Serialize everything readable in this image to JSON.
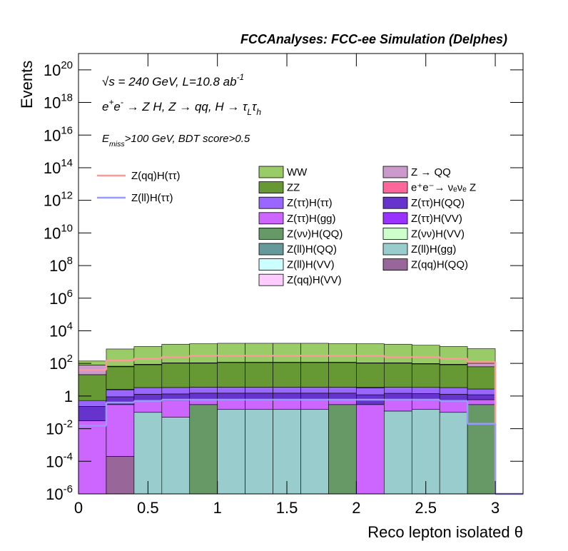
{
  "chart_data": {
    "type": "histogram",
    "stacked": true,
    "log_y": true,
    "title": "FCCAnalyses: FCC-ee Simulation (Delphes)",
    "x_label": "Reco lepton isolated θ",
    "y_label": "Events",
    "annotations": [
      [
        {
          "text": "√s = 240 GeV, L=10.8 ab"
        },
        {
          "text": "-1",
          "sup": true
        }
      ],
      [
        {
          "text": "e"
        },
        {
          "text": "+",
          "sup": true
        },
        {
          "text": "e"
        },
        {
          "text": "-",
          "sup": true
        },
        {
          "text": " → Z H, Z  → qq, H  → τ"
        },
        {
          "text": "L",
          "sub": true
        },
        {
          "text": "τ"
        },
        {
          "text": "h",
          "sub": true
        }
      ],
      [
        {
          "text": "E"
        },
        {
          "text": "miss",
          "sub": true
        },
        {
          "text": ">100 GeV, BDT score>0.5"
        }
      ]
    ],
    "bins": [
      0,
      0.2,
      0.4,
      0.6,
      0.8,
      1.0,
      1.2,
      1.4,
      1.6,
      1.8,
      2.0,
      2.2,
      2.4,
      2.6,
      2.8,
      3.0,
      3.2
    ],
    "xlim": [
      0,
      3.2
    ],
    "xticks": [
      0,
      0.5,
      1,
      1.5,
      2,
      2.5,
      3
    ],
    "ylim": [
      1e-06,
      1e+21
    ],
    "yticks": [
      {
        "value": 1e-06,
        "label": "10",
        "exponent": "-6"
      },
      {
        "value": 0.0001,
        "label": "10",
        "exponent": "-4"
      },
      {
        "value": 0.01,
        "label": "10",
        "exponent": "-2"
      },
      1,
      {
        "value": 100.0,
        "label": "10",
        "exponent": "2"
      },
      {
        "value": 10000.0,
        "label": "10",
        "exponent": "4"
      },
      {
        "value": 1000000.0,
        "label": "10",
        "exponent": "6"
      },
      {
        "value": 100000000.0,
        "label": "10",
        "exponent": "8"
      },
      {
        "value": 10000000000.0,
        "label": "10",
        "exponent": "10"
      },
      {
        "value": 1000000000000.0,
        "label": "10",
        "exponent": "12"
      },
      {
        "value": 100000000000000.0,
        "label": "10",
        "exponent": "14"
      },
      {
        "value": 1e+16,
        "label": "10",
        "exponent": "16"
      },
      {
        "value": 1e+18,
        "label": "10",
        "exponent": "18"
      },
      {
        "value": 1e+20,
        "label": "10",
        "exponent": "20"
      }
    ],
    "series": [
      {
        "name": "WW",
        "color": "#99cc66",
        "values": [
          60,
          700,
          1000,
          1400,
          1500,
          1600,
          1600,
          1600,
          1600,
          1500,
          1500,
          1400,
          1200,
          1000,
          700,
          0
        ]
      },
      {
        "name": "Z → QQ",
        "color": "#cc99cc",
        "values": [
          60,
          5,
          5,
          5,
          5,
          5,
          5,
          5,
          5,
          5,
          5,
          5,
          5,
          5,
          40,
          0
        ]
      },
      {
        "name": "ZZ",
        "color": "#669933",
        "values": [
          20,
          60,
          80,
          100,
          100,
          110,
          110,
          110,
          110,
          110,
          100,
          100,
          90,
          80,
          60,
          0
        ]
      },
      {
        "name": "e⁺e⁻→ νₑνₑ Z",
        "color": "#ff6699",
        "values": [
          0,
          0.2,
          0,
          0,
          0,
          0,
          0,
          0,
          0,
          0,
          0.2,
          0,
          0,
          0,
          0,
          0
        ]
      },
      {
        "name": "Z(ττ)H(ττ)",
        "color": "#9966ff",
        "values": [
          0.3,
          1.5,
          2,
          2,
          2,
          2,
          2,
          2,
          2,
          2,
          2,
          2,
          2,
          2,
          1.5,
          0
        ]
      },
      {
        "name": "Z(ττ)H(QQ)",
        "color": "#6633cc",
        "values": [
          0.2,
          0.6,
          0.8,
          0.8,
          0.9,
          0.9,
          0.9,
          0.9,
          0.9,
          0.9,
          0.9,
          0.9,
          0.8,
          0.8,
          0.6,
          0
        ]
      },
      {
        "name": "Z(ττ)H(gg)",
        "color": "#cc66ff",
        "values": [
          0.03,
          0.3,
          0.4,
          0.5,
          0.3,
          0.45,
          0.45,
          0.45,
          0.45,
          0.3,
          0.3,
          0.45,
          0.45,
          0.4,
          0.3,
          0
        ]
      },
      {
        "name": "Z(ττ)H(VV)",
        "color": "#9933ff",
        "values": [
          0,
          0,
          0,
          0,
          0,
          0,
          0,
          0,
          0,
          0,
          0,
          0,
          0,
          0,
          0,
          0
        ]
      },
      {
        "name": "Z(νν)H(QQ)",
        "color": "#669966",
        "values": [
          0,
          0,
          0,
          0,
          0.3,
          0,
          0,
          0,
          0,
          0.3,
          0,
          0,
          0,
          0,
          0.3,
          0
        ]
      },
      {
        "name": "Z(νν)H(VV)",
        "color": "#ccffcc",
        "values": [
          0,
          0,
          0,
          0,
          0,
          0,
          0,
          0,
          0,
          0,
          0,
          0,
          0,
          0,
          0,
          0
        ]
      },
      {
        "name": "Z(ll)H(QQ)",
        "color": "#669999",
        "values": [
          0,
          0,
          0,
          0,
          0,
          0,
          0,
          0,
          0,
          0,
          0,
          0,
          0,
          0,
          0,
          0
        ]
      },
      {
        "name": "Z(ll)H(gg)",
        "color": "#99cccc",
        "values": [
          0,
          0,
          0.1,
          0.05,
          0,
          0.15,
          0.15,
          0.15,
          0.15,
          0,
          0,
          0.12,
          0.15,
          0.1,
          0,
          0
        ]
      },
      {
        "name": "Z(ll)H(VV)",
        "color": "#ccffff",
        "values": [
          0,
          0,
          0,
          0,
          0,
          0,
          0,
          0,
          0,
          0,
          0,
          0,
          0,
          0,
          0,
          0
        ]
      },
      {
        "name": "Z(qq)H(QQ)",
        "color": "#996699",
        "values": [
          0,
          0.0002,
          0,
          0,
          0,
          0,
          0,
          0,
          0,
          0,
          0,
          0,
          0,
          0,
          0,
          0
        ]
      },
      {
        "name": "Z(qq)H(VV)",
        "color": "#ffccff",
        "values": [
          0,
          0,
          0,
          0,
          0,
          0,
          0,
          0,
          0,
          0,
          0,
          0,
          0,
          0,
          0,
          0
        ]
      }
    ],
    "line_series": [
      {
        "name": "Z(qq)H(ττ)",
        "color": "#ff9999",
        "values": [
          40,
          150,
          200,
          250,
          300,
          300,
          300,
          300,
          300,
          300,
          300,
          250,
          250,
          200,
          120,
          0
        ]
      },
      {
        "name": "Z(ll)H(ττ)",
        "color": "#9999ff",
        "values": [
          0.015,
          0.4,
          0.5,
          0.6,
          0.6,
          0.6,
          0.6,
          0.6,
          0.6,
          0.6,
          0.6,
          0.6,
          0.6,
          0.5,
          0.02,
          0
        ]
      }
    ]
  }
}
